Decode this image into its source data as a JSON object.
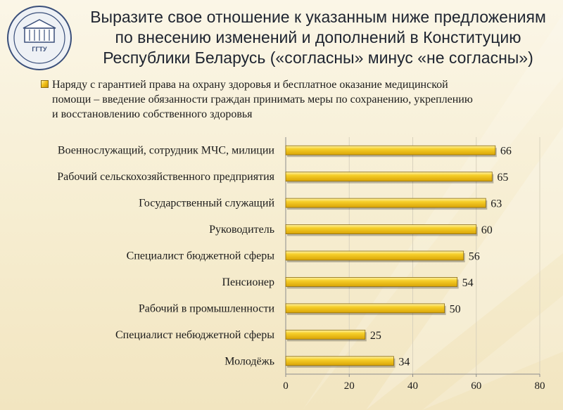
{
  "title_lines": [
    "Выразите свое отношение к указанным ниже предложениям",
    "по внесению изменений и дополнений в Конституцию",
    "Республики Беларусь  («согласны» минус «не согласны»)"
  ],
  "logo": {
    "text": "ГГТУ",
    "icon": "university-emblem-icon"
  },
  "colors": {
    "bar": "#f3c51c",
    "bar_edge": "#8a6a10",
    "axis": "#8c8c8c"
  },
  "chart_data": {
    "type": "bar",
    "orientation": "horizontal",
    "title": "Выразите свое отношение к указанным ниже предложениям по внесению изменений и дополнений в Конституцию Республики Беларусь  («согласны» минус «не согласны»)",
    "categories": [
      "Военнослужащий, сотрудник МЧС, милиции",
      "Рабочий сельскохозяйственного предприятия",
      "Государственный служащий",
      "Руководитель",
      "Специалист бюджетной сферы",
      "Пенсионер",
      "Рабочий в промышленности",
      "Специалист небюджетной сферы",
      "Молодёжь"
    ],
    "series": [
      {
        "name_lines": [
          "Наряду  с гарантией права на охрану здоровья и бесплатное оказание медицинской",
          "помощи – введение обязанности граждан  принимать меры по сохранению, укреплению",
          "и восстановлению собственного здоровья"
        ],
        "values": [
          66,
          65,
          63,
          60,
          56,
          54,
          50,
          25,
          34
        ]
      }
    ],
    "xlim": [
      0,
      80
    ],
    "xticks": [
      0,
      20,
      40,
      60,
      80
    ],
    "grid": true,
    "legend_position": "top-left"
  }
}
